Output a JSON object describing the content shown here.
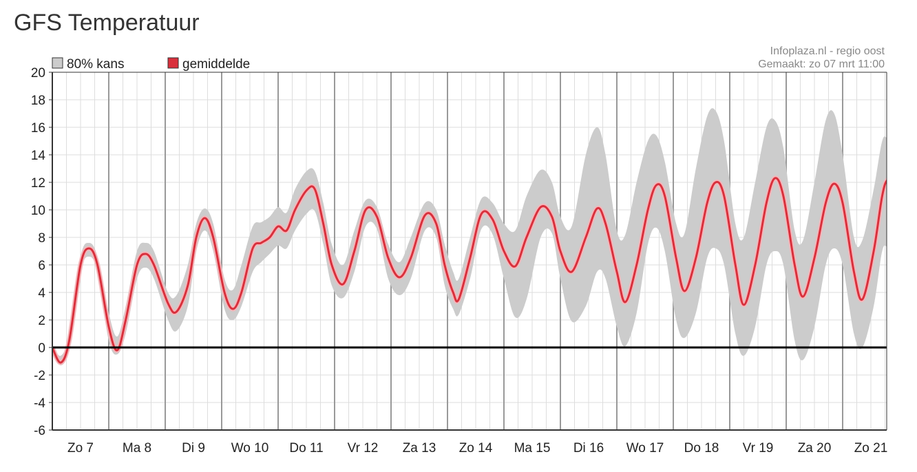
{
  "page": {
    "title": "GFS Temperatuur"
  },
  "credits": {
    "source": "Infoplaza.nl - regio oost",
    "made": "Gemaakt: zo 07 mrt 11:00"
  },
  "legend": [
    {
      "label": "80% kans",
      "color": "#cccccc"
    },
    {
      "label": "gemiddelde",
      "color": "#d9303c"
    }
  ],
  "colors": {
    "band": "#cccccc",
    "mean": "#d9303c",
    "zero_line": "#000000",
    "grid_major": "#999999",
    "grid_minor": "#dddddd"
  },
  "chart_data": {
    "type": "area",
    "ylim": [
      -6,
      20
    ],
    "yticks": [
      20,
      18,
      16,
      14,
      12,
      10,
      8,
      6,
      4,
      2,
      0,
      -2,
      -4,
      -6
    ],
    "xlim": [
      0,
      14.8
    ],
    "categories": [
      "Zo 7",
      "Ma 8",
      "Di 9",
      "Wo 10",
      "Do 11",
      "Vr 12",
      "Za 13",
      "Zo 14",
      "Ma 15",
      "Di 16",
      "Wo 17",
      "Do 18",
      "Vr 19",
      "Za 20",
      "Zo 21"
    ],
    "grid": true,
    "legend_position": "top-left",
    "series": [
      {
        "name": "gemiddelde",
        "kind": "line",
        "points": [
          [
            0,
            0
          ],
          [
            0.15,
            -1.1
          ],
          [
            0.3,
            0.5
          ],
          [
            0.5,
            6
          ],
          [
            0.65,
            7.2
          ],
          [
            0.8,
            6
          ],
          [
            1.0,
            1.5
          ],
          [
            1.15,
            -0.2
          ],
          [
            1.3,
            2
          ],
          [
            1.5,
            6
          ],
          [
            1.65,
            6.8
          ],
          [
            1.8,
            6
          ],
          [
            2.05,
            3.2
          ],
          [
            2.2,
            2.6
          ],
          [
            2.4,
            4.5
          ],
          [
            2.55,
            8
          ],
          [
            2.7,
            9.4
          ],
          [
            2.85,
            8
          ],
          [
            3.05,
            4
          ],
          [
            3.2,
            2.8
          ],
          [
            3.35,
            4
          ],
          [
            3.55,
            7.2
          ],
          [
            3.7,
            7.6
          ],
          [
            3.85,
            8
          ],
          [
            4.0,
            8.8
          ],
          [
            4.15,
            8.5
          ],
          [
            4.3,
            10
          ],
          [
            4.5,
            11.4
          ],
          [
            4.65,
            11.5
          ],
          [
            4.8,
            9
          ],
          [
            4.95,
            6
          ],
          [
            5.15,
            4.6
          ],
          [
            5.35,
            7
          ],
          [
            5.55,
            10
          ],
          [
            5.75,
            9.5
          ],
          [
            5.95,
            6.5
          ],
          [
            6.15,
            5.1
          ],
          [
            6.35,
            6.5
          ],
          [
            6.6,
            9.6
          ],
          [
            6.8,
            9
          ],
          [
            6.95,
            6
          ],
          [
            7.1,
            4
          ],
          [
            7.2,
            3.5
          ],
          [
            7.4,
            6.5
          ],
          [
            7.6,
            9.7
          ],
          [
            7.8,
            9.3
          ],
          [
            8.0,
            7
          ],
          [
            8.2,
            5.9
          ],
          [
            8.4,
            8
          ],
          [
            8.65,
            10.2
          ],
          [
            8.85,
            9.5
          ],
          [
            9.0,
            7
          ],
          [
            9.2,
            5.5
          ],
          [
            9.45,
            8
          ],
          [
            9.65,
            10.1
          ],
          [
            9.8,
            9
          ],
          [
            10.0,
            5.5
          ],
          [
            10.15,
            3.3
          ],
          [
            10.35,
            6
          ],
          [
            10.55,
            10
          ],
          [
            10.7,
            11.8
          ],
          [
            10.85,
            11
          ],
          [
            11.05,
            6.5
          ],
          [
            11.2,
            4.1
          ],
          [
            11.4,
            6.5
          ],
          [
            11.6,
            10.5
          ],
          [
            11.75,
            12
          ],
          [
            11.9,
            11
          ],
          [
            12.1,
            6
          ],
          [
            12.25,
            3.1
          ],
          [
            12.45,
            6
          ],
          [
            12.65,
            10.5
          ],
          [
            12.8,
            12.3
          ],
          [
            12.95,
            11
          ],
          [
            13.15,
            6
          ],
          [
            13.3,
            3.7
          ],
          [
            13.5,
            6.5
          ],
          [
            13.7,
            10.5
          ],
          [
            13.85,
            11.9
          ],
          [
            14.0,
            10.5
          ],
          [
            14.2,
            5.5
          ],
          [
            14.35,
            3.5
          ],
          [
            14.55,
            7
          ],
          [
            14.7,
            11
          ],
          [
            14.8,
            12.2
          ],
          [
            14.95,
            12.0
          ]
        ]
      },
      {
        "name": "80% kans",
        "kind": "band",
        "upper": [
          [
            0,
            0.2
          ],
          [
            0.15,
            -0.6
          ],
          [
            0.3,
            1
          ],
          [
            0.5,
            6.6
          ],
          [
            0.65,
            7.6
          ],
          [
            0.8,
            6.6
          ],
          [
            1.0,
            2.5
          ],
          [
            1.15,
            0.8
          ],
          [
            1.3,
            3
          ],
          [
            1.5,
            7
          ],
          [
            1.65,
            7.6
          ],
          [
            1.8,
            7
          ],
          [
            2.05,
            4
          ],
          [
            2.2,
            3.8
          ],
          [
            2.4,
            6
          ],
          [
            2.55,
            9
          ],
          [
            2.7,
            10.1
          ],
          [
            2.85,
            9
          ],
          [
            3.05,
            5
          ],
          [
            3.2,
            4.2
          ],
          [
            3.35,
            6
          ],
          [
            3.55,
            8.8
          ],
          [
            3.7,
            9.1
          ],
          [
            3.85,
            9.5
          ],
          [
            4.0,
            10.2
          ],
          [
            4.15,
            9.8
          ],
          [
            4.3,
            11.5
          ],
          [
            4.5,
            12.8
          ],
          [
            4.65,
            12.8
          ],
          [
            4.8,
            10.5
          ],
          [
            4.95,
            7.5
          ],
          [
            5.15,
            6
          ],
          [
            5.35,
            8.5
          ],
          [
            5.55,
            10.7
          ],
          [
            5.75,
            10.2
          ],
          [
            5.95,
            7.5
          ],
          [
            6.15,
            6.2
          ],
          [
            6.35,
            8
          ],
          [
            6.6,
            10.5
          ],
          [
            6.8,
            10
          ],
          [
            6.95,
            7.5
          ],
          [
            7.1,
            5.5
          ],
          [
            7.2,
            5
          ],
          [
            7.4,
            8
          ],
          [
            7.6,
            10.8
          ],
          [
            7.8,
            10.5
          ],
          [
            8.0,
            9
          ],
          [
            8.2,
            8.5
          ],
          [
            8.4,
            11
          ],
          [
            8.65,
            12.9
          ],
          [
            8.85,
            12
          ],
          [
            9.0,
            9.5
          ],
          [
            9.2,
            8.8
          ],
          [
            9.45,
            14
          ],
          [
            9.65,
            16
          ],
          [
            9.8,
            14
          ],
          [
            10.0,
            8.5
          ],
          [
            10.15,
            8.2
          ],
          [
            10.35,
            12
          ],
          [
            10.55,
            15
          ],
          [
            10.7,
            15.4
          ],
          [
            10.85,
            13.5
          ],
          [
            11.05,
            9
          ],
          [
            11.2,
            8.3
          ],
          [
            11.4,
            13
          ],
          [
            11.6,
            16.8
          ],
          [
            11.75,
            17.2
          ],
          [
            11.9,
            15
          ],
          [
            12.1,
            9
          ],
          [
            12.25,
            8
          ],
          [
            12.45,
            12
          ],
          [
            12.65,
            16
          ],
          [
            12.8,
            16.5
          ],
          [
            12.95,
            14.5
          ],
          [
            13.15,
            8.5
          ],
          [
            13.3,
            7.8
          ],
          [
            13.5,
            12
          ],
          [
            13.7,
            16.5
          ],
          [
            13.85,
            17
          ],
          [
            14.0,
            14
          ],
          [
            14.2,
            8
          ],
          [
            14.35,
            7.8
          ],
          [
            14.55,
            11.5
          ],
          [
            14.7,
            15
          ],
          [
            14.8,
            15.2
          ],
          [
            14.95,
            15
          ]
        ],
        "lower": [
          [
            0,
            -0.2
          ],
          [
            0.15,
            -1.3
          ],
          [
            0.3,
            0
          ],
          [
            0.5,
            5.5
          ],
          [
            0.65,
            6.6
          ],
          [
            0.8,
            5.5
          ],
          [
            1.0,
            0.5
          ],
          [
            1.15,
            -0.5
          ],
          [
            1.3,
            1
          ],
          [
            1.5,
            5
          ],
          [
            1.65,
            5.8
          ],
          [
            1.8,
            5
          ],
          [
            2.05,
            2
          ],
          [
            2.2,
            1.2
          ],
          [
            2.4,
            3
          ],
          [
            2.55,
            7
          ],
          [
            2.7,
            8.5
          ],
          [
            2.85,
            7
          ],
          [
            3.05,
            2.8
          ],
          [
            3.2,
            2
          ],
          [
            3.35,
            3
          ],
          [
            3.55,
            5.5
          ],
          [
            3.7,
            6.2
          ],
          [
            3.85,
            6.8
          ],
          [
            4.0,
            7.4
          ],
          [
            4.15,
            7.2
          ],
          [
            4.3,
            8.5
          ],
          [
            4.5,
            9.7
          ],
          [
            4.65,
            9.9
          ],
          [
            4.8,
            7.5
          ],
          [
            4.95,
            4.5
          ],
          [
            5.15,
            3.6
          ],
          [
            5.35,
            5.5
          ],
          [
            5.55,
            8.8
          ],
          [
            5.75,
            8.6
          ],
          [
            5.95,
            5
          ],
          [
            6.15,
            3.8
          ],
          [
            6.35,
            5
          ],
          [
            6.6,
            8.5
          ],
          [
            6.8,
            8
          ],
          [
            6.95,
            4.5
          ],
          [
            7.1,
            2.8
          ],
          [
            7.2,
            2.4
          ],
          [
            7.4,
            5
          ],
          [
            7.6,
            8.6
          ],
          [
            7.8,
            8.2
          ],
          [
            8.0,
            5
          ],
          [
            8.2,
            2.2
          ],
          [
            8.4,
            3.5
          ],
          [
            8.65,
            8
          ],
          [
            8.85,
            8.3
          ],
          [
            9.0,
            5
          ],
          [
            9.2,
            1.9
          ],
          [
            9.45,
            3
          ],
          [
            9.65,
            5.5
          ],
          [
            9.8,
            5
          ],
          [
            10.0,
            1.5
          ],
          [
            10.15,
            0.1
          ],
          [
            10.35,
            2.5
          ],
          [
            10.55,
            7.5
          ],
          [
            10.7,
            8.7
          ],
          [
            10.85,
            7
          ],
          [
            11.05,
            2
          ],
          [
            11.2,
            0.7
          ],
          [
            11.4,
            2.5
          ],
          [
            11.6,
            6.5
          ],
          [
            11.75,
            7.2
          ],
          [
            11.9,
            6
          ],
          [
            12.1,
            1
          ],
          [
            12.25,
            -0.6
          ],
          [
            12.45,
            1.5
          ],
          [
            12.65,
            6
          ],
          [
            12.8,
            7
          ],
          [
            12.95,
            6
          ],
          [
            13.15,
            0.5
          ],
          [
            13.3,
            -0.9
          ],
          [
            13.5,
            1.5
          ],
          [
            13.7,
            6
          ],
          [
            13.85,
            7.2
          ],
          [
            14.0,
            6
          ],
          [
            14.2,
            1
          ],
          [
            14.35,
            0
          ],
          [
            14.55,
            3
          ],
          [
            14.7,
            7
          ],
          [
            14.8,
            7.3
          ],
          [
            14.95,
            7.1
          ]
        ]
      }
    ]
  }
}
